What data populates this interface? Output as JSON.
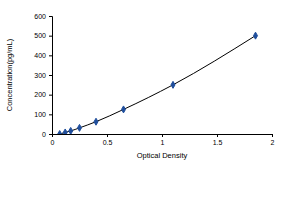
{
  "chart_data": {
    "type": "scatter",
    "x_label": "Optical Density",
    "y_label": "Concentration(pg/mL)",
    "xlim": [
      0,
      2
    ],
    "xticks": [
      0,
      0.5,
      1,
      1.5,
      2
    ],
    "ylim": [
      0,
      600
    ],
    "yticks": [
      0,
      100,
      200,
      300,
      400,
      500,
      600
    ],
    "series": [
      {
        "color": "#1f4e9c",
        "marker": "diamond",
        "line_style": "solid",
        "x": [
          0.07,
          0.12,
          0.17,
          0.25,
          0.4,
          0.65,
          1.1,
          1.85
        ],
        "values": [
          0,
          7.8,
          15.6,
          31.2,
          62.5,
          125,
          250,
          500
        ]
      }
    ]
  }
}
